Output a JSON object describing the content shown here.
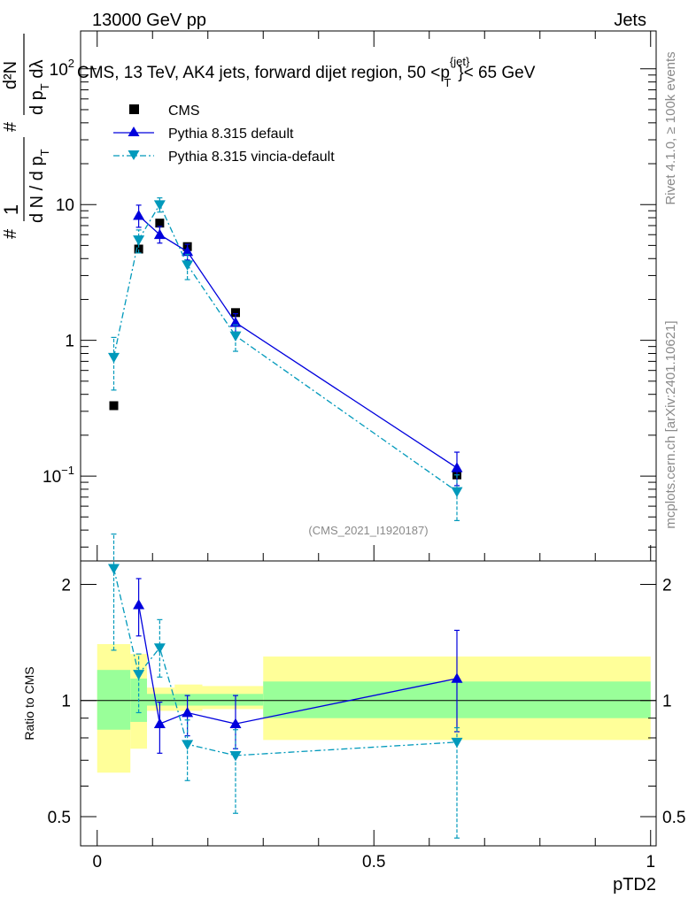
{
  "header": {
    "left": "13000 GeV pp",
    "right": "Jets",
    "side_rivet": "Rivet 4.1.0, ≥ 100k events",
    "side_mcplots": "mcplots.cern.ch [arXiv:2401.10621]"
  },
  "colors": {
    "cms": "#000000",
    "default": "#0000dd",
    "vincia": "#0099bb",
    "band_inner": "#99ff99",
    "band_outer": "#ffff99"
  },
  "chart_data": [
    {
      "type": "line",
      "title": "CMS, 13 TeV, AK4 jets, forward dijet region, 50 <p_T^{jet}< 65 GeV",
      "title_parts": {
        "prefix": "CMS, 13 TeV, AK4 jets, forward dijet region, 50 <p",
        "sup": "{jet}",
        "sub": "T",
        "suffix": "}< 65 GeV"
      },
      "ylabel": "1/(dN/dp_T) d²N/(dp_T dλ)",
      "ylabel_parts": {
        "frac_num": "1",
        "frac_den": "d N / d p",
        "frac_den_sub": "T",
        "deriv_num": "d²N",
        "deriv_den": "d p",
        "deriv_den_sub": "T",
        "deriv_den_suffix": " dλ",
        "hash": "#"
      },
      "yscale": "log",
      "ylim": [
        0.0237,
        190
      ],
      "xlim": [
        -0.03,
        1.01
      ],
      "y_ticks": [
        {
          "value": 0.1,
          "label": "10",
          "exp": "−1"
        },
        {
          "value": 1,
          "label": "1"
        },
        {
          "value": 10,
          "label": "10"
        },
        {
          "value": 100,
          "label": "10",
          "exp": "2"
        }
      ],
      "watermark": "(CMS_2021_I1920187)",
      "legend": {
        "placement": "top-left",
        "entries": [
          "CMS",
          "Pythia 8.315 default",
          "Pythia 8.315 vincia-default"
        ]
      },
      "series": [
        {
          "name": "CMS",
          "style": "squares",
          "x": [
            0.03,
            0.075,
            0.113,
            0.163,
            0.25,
            0.65
          ],
          "y": [
            0.33,
            4.7,
            7.3,
            4.9,
            1.6,
            0.102
          ],
          "yerr_low": [
            0,
            0,
            0,
            0,
            0,
            0
          ],
          "yerr_high": [
            0,
            0,
            0,
            0,
            0,
            0
          ]
        },
        {
          "name": "Pythia 8.315 default",
          "style": "line-triangle-up",
          "x": [
            0.075,
            0.113,
            0.163,
            0.25,
            0.65
          ],
          "y": [
            8.3,
            6.0,
            4.5,
            1.35,
            0.115
          ],
          "yerr_low": [
            1.5,
            0.8,
            0.6,
            0.2,
            0.03
          ],
          "yerr_high": [
            1.6,
            0.9,
            0.6,
            0.22,
            0.035
          ]
        },
        {
          "name": "Pythia 8.315 vincia-default",
          "style": "dashdot-triangle-down",
          "x": [
            0.03,
            0.075,
            0.113,
            0.163,
            0.25,
            0.65
          ],
          "y": [
            0.75,
            5.5,
            10.0,
            3.6,
            1.08,
            0.077
          ],
          "yerr_low": [
            0.32,
            1.1,
            1.2,
            0.8,
            0.25,
            0.03
          ],
          "yerr_high": [
            0.3,
            1.0,
            1.2,
            0.7,
            0.22,
            0.025
          ]
        }
      ]
    },
    {
      "type": "line",
      "ylabel": "Ratio to CMS",
      "xlabel": "pTD2",
      "yscale": "log",
      "ylim": [
        0.42,
        2.3
      ],
      "xlim": [
        -0.03,
        1.01
      ],
      "x_ticks": [
        {
          "value": 0,
          "label": "0"
        },
        {
          "value": 0.5,
          "label": "0.5"
        },
        {
          "value": 1,
          "label": "1"
        }
      ],
      "y_ticks": [
        {
          "value": 0.5,
          "label": "0.5"
        },
        {
          "value": 1,
          "label": "1"
        },
        {
          "value": 2,
          "label": "2"
        }
      ],
      "bands": [
        {
          "x0": 0.0,
          "x1": 0.06,
          "outer": [
            0.65,
            1.4
          ],
          "inner": [
            0.84,
            1.2
          ]
        },
        {
          "x0": 0.06,
          "x1": 0.09,
          "outer": [
            0.75,
            1.32
          ],
          "inner": [
            0.88,
            1.14
          ]
        },
        {
          "x0": 0.09,
          "x1": 0.14,
          "outer": [
            0.94,
            1.08
          ],
          "inner": [
            0.97,
            1.04
          ]
        },
        {
          "x0": 0.14,
          "x1": 0.19,
          "outer": [
            0.94,
            1.1
          ],
          "inner": [
            0.97,
            1.04
          ]
        },
        {
          "x0": 0.19,
          "x1": 0.3,
          "outer": [
            0.95,
            1.09
          ],
          "inner": [
            0.97,
            1.04
          ]
        },
        {
          "x0": 0.3,
          "x1": 1.0,
          "outer": [
            0.79,
            1.3
          ],
          "inner": [
            0.9,
            1.12
          ]
        }
      ],
      "series": [
        {
          "name": "Pythia 8.315 default",
          "style": "line-triangle-up",
          "x": [
            0.075,
            0.113,
            0.163,
            0.25,
            0.65
          ],
          "y": [
            1.77,
            0.87,
            0.93,
            0.87,
            1.14
          ],
          "yerr_low": [
            0.3,
            0.14,
            0.12,
            0.12,
            0.31
          ],
          "yerr_high": [
            0.3,
            0.12,
            0.1,
            0.16,
            0.38
          ]
        },
        {
          "name": "Pythia 8.315 vincia-default",
          "style": "dashdot-triangle-down",
          "x": [
            0.03,
            0.075,
            0.113,
            0.163,
            0.25,
            0.65
          ],
          "y": [
            2.2,
            1.17,
            1.37,
            0.77,
            0.72,
            0.78
          ],
          "yerr_low": [
            0.85,
            0.24,
            0.22,
            0.15,
            0.21,
            0.34
          ],
          "yerr_high": [
            0.5,
            0.15,
            0.25,
            0.12,
            0.12,
            0.07
          ]
        }
      ]
    }
  ]
}
